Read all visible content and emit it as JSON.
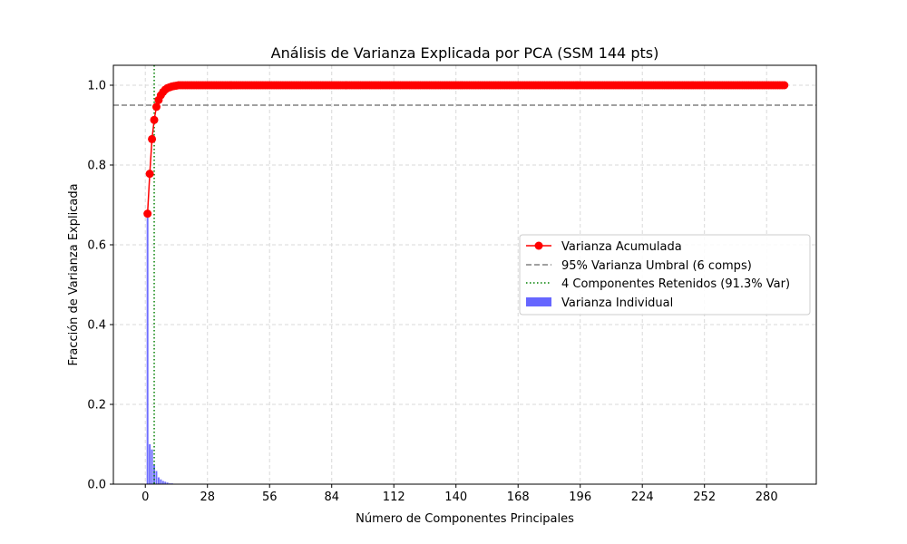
{
  "chart_data": {
    "type": "bar+line",
    "title": "Análisis de Varianza Explicada por PCA (SSM 144 pts)",
    "xlabel": "Número de Componentes Principales",
    "ylabel": "Fracción de Varianza Explicada",
    "xlim": [
      -14.4,
      302.4
    ],
    "ylim": [
      0,
      1.05
    ],
    "xticks": [
      0,
      28,
      56,
      84,
      112,
      140,
      168,
      196,
      224,
      252,
      280
    ],
    "yticks": [
      "0.0",
      "0.2",
      "0.4",
      "0.6",
      "0.8",
      "1.0"
    ],
    "grid": true,
    "legend_position": "center-right",
    "cumulative": {
      "name": "Varianza Acumulada",
      "color": "#ff0000",
      "n_components": 288,
      "head": [
        0.678,
        0.778,
        0.865,
        0.913,
        0.946,
        0.963,
        0.975,
        0.983,
        0.989,
        0.993,
        0.995,
        0.997,
        0.998,
        0.999
      ],
      "tail_value": 1.0
    },
    "individual": {
      "name": "Varianza Individual",
      "color": "#6666ff",
      "head": [
        0.678,
        0.1,
        0.087,
        0.048,
        0.033,
        0.017,
        0.012,
        0.008,
        0.006,
        0.004,
        0.002,
        0.002,
        0.001,
        0.001
      ],
      "tail_value": 0.0
    },
    "threshold": {
      "name": "95% Varianza Umbral (6 comps)",
      "y": 0.95,
      "color": "#808080"
    },
    "retained": {
      "name": "4 Componentes Retenidos (91.3% Var)",
      "x": 4,
      "color": "#008000"
    }
  }
}
